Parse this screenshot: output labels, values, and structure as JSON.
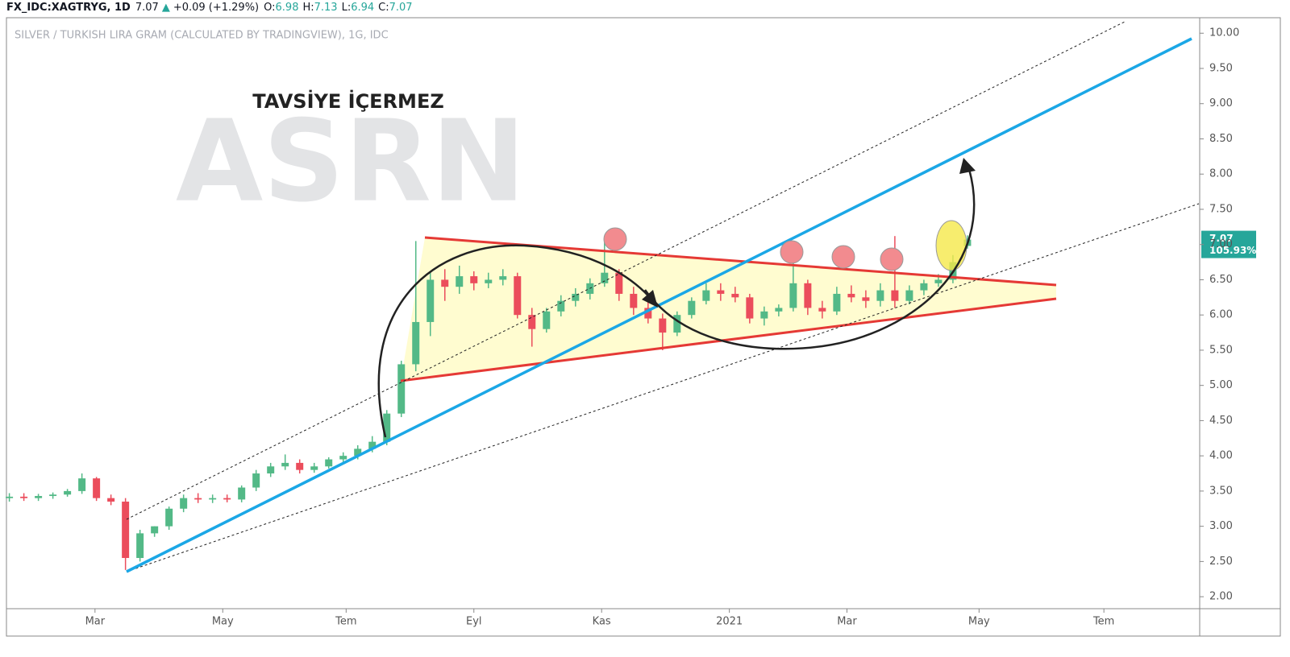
{
  "header": {
    "symbol": "FX_IDC:XAGTRYG, 1D",
    "last": "7.07",
    "arrow": "▲",
    "change": "+0.09 (+1.29%)",
    "o_label": "O:",
    "o": "6.98",
    "h_label": "H:",
    "h": "7.13",
    "l_label": "L:",
    "l": "6.94",
    "c_label": "C:",
    "c": "7.07"
  },
  "chart_data": {
    "type": "candlestick",
    "title": "SILVER / TURKISH LIRA GRAM (CALCULATED BY TRADINGVIEW), 1G, IDC",
    "annotation": "TAVSİYE İÇERMEZ",
    "watermark": "ASRN",
    "price_tag": {
      "value": 7.07,
      "label": "7.07",
      "percent": "105.93%"
    },
    "up_color": "#53b987",
    "down_color": "#eb4d5c",
    "grid": false,
    "xlim": [
      -0.2,
      82
    ],
    "xticks": [
      {
        "value": 5.9,
        "label": "Mar"
      },
      {
        "value": 14.7,
        "label": "May"
      },
      {
        "value": 23.2,
        "label": "Tem"
      },
      {
        "value": 32,
        "label": "Eyl"
      },
      {
        "value": 40.8,
        "label": "Kas"
      },
      {
        "value": 49.6,
        "label": "2021"
      },
      {
        "value": 57.7,
        "label": "Mar"
      },
      {
        "value": 66.8,
        "label": "May"
      },
      {
        "value": 75.4,
        "label": "Tem"
      }
    ],
    "ylim": [
      1.83,
      10.22
    ],
    "yticks": [
      {
        "value": 2,
        "label": "2.00"
      },
      {
        "value": 2.5,
        "label": "2.50"
      },
      {
        "value": 3,
        "label": "3.00"
      },
      {
        "value": 3.5,
        "label": "3.50"
      },
      {
        "value": 4,
        "label": "4.00"
      },
      {
        "value": 4.5,
        "label": "4.50"
      },
      {
        "value": 5,
        "label": "5.00"
      },
      {
        "value": 5.5,
        "label": "5.50"
      },
      {
        "value": 6,
        "label": "6.00"
      },
      {
        "value": 6.5,
        "label": "6.50"
      },
      {
        "value": 7,
        "label": "7.00"
      },
      {
        "value": 7.5,
        "label": "7.50"
      },
      {
        "value": 8,
        "label": "8.00"
      },
      {
        "value": 8.5,
        "label": "8.50"
      },
      {
        "value": 9,
        "label": "9.00"
      },
      {
        "value": 9.5,
        "label": "9.50"
      },
      {
        "value": 10,
        "label": "10.00"
      }
    ],
    "open": [
      3.4,
      3.42,
      3.4,
      3.43,
      3.45,
      3.5,
      3.68,
      3.4,
      3.35,
      2.55,
      2.9,
      3.0,
      3.25,
      3.4,
      3.38,
      3.4,
      3.38,
      3.55,
      3.75,
      3.85,
      3.9,
      3.8,
      3.85,
      3.95,
      4.0,
      4.1,
      4.2,
      4.6,
      5.3,
      5.9,
      6.5,
      6.4,
      6.55,
      6.45,
      6.5,
      6.55,
      6.0,
      5.8,
      6.05,
      6.2,
      6.3,
      6.45,
      6.6,
      6.3,
      6.1,
      5.95,
      5.75,
      6.0,
      6.2,
      6.35,
      6.3,
      6.25,
      5.95,
      6.05,
      6.1,
      6.45,
      6.1,
      6.05,
      6.3,
      6.25,
      6.2,
      6.35,
      6.2,
      6.35,
      6.45,
      6.5,
      6.98
    ],
    "high": [
      3.47,
      3.47,
      3.46,
      3.48,
      3.53,
      3.75,
      3.7,
      3.45,
      3.4,
      2.95,
      3.0,
      3.28,
      3.45,
      3.47,
      3.45,
      3.45,
      3.58,
      3.8,
      3.9,
      4.02,
      3.95,
      3.9,
      3.98,
      4.05,
      4.15,
      4.28,
      4.65,
      5.35,
      7.05,
      6.6,
      6.65,
      6.7,
      6.62,
      6.6,
      6.65,
      6.6,
      6.1,
      6.1,
      6.28,
      6.38,
      6.52,
      7.05,
      6.65,
      6.4,
      6.18,
      6.02,
      6.05,
      6.25,
      6.45,
      6.45,
      6.4,
      6.3,
      6.12,
      6.15,
      6.95,
      6.5,
      6.2,
      6.4,
      6.42,
      6.35,
      6.45,
      7.12,
      6.42,
      6.5,
      6.58,
      6.85,
      7.13
    ],
    "low": [
      3.35,
      3.36,
      3.36,
      3.39,
      3.42,
      3.46,
      3.36,
      3.3,
      2.38,
      2.5,
      2.85,
      2.95,
      3.2,
      3.33,
      3.33,
      3.34,
      3.34,
      3.5,
      3.7,
      3.8,
      3.75,
      3.76,
      3.82,
      3.9,
      3.95,
      4.05,
      4.15,
      4.55,
      5.2,
      5.7,
      6.2,
      6.3,
      6.35,
      6.38,
      6.42,
      5.95,
      5.55,
      5.75,
      5.98,
      6.12,
      6.22,
      6.4,
      6.2,
      6.0,
      5.88,
      5.5,
      5.7,
      5.95,
      6.15,
      6.2,
      6.18,
      5.88,
      5.85,
      5.98,
      6.05,
      6.0,
      5.95,
      6.0,
      6.18,
      6.1,
      6.12,
      6.1,
      6.15,
      6.28,
      6.4,
      6.45,
      6.94
    ],
    "close": [
      3.42,
      3.4,
      3.43,
      3.45,
      3.5,
      3.68,
      3.4,
      3.35,
      2.55,
      2.9,
      3.0,
      3.25,
      3.4,
      3.38,
      3.4,
      3.38,
      3.55,
      3.75,
      3.85,
      3.9,
      3.8,
      3.85,
      3.95,
      4.0,
      4.1,
      4.2,
      4.6,
      5.3,
      5.9,
      6.5,
      6.4,
      6.55,
      6.45,
      6.5,
      6.55,
      6.0,
      5.8,
      6.05,
      6.2,
      6.3,
      6.45,
      6.6,
      6.3,
      6.1,
      5.95,
      5.75,
      6.0,
      6.2,
      6.35,
      6.3,
      6.25,
      5.95,
      6.05,
      6.1,
      6.45,
      6.1,
      6.05,
      6.3,
      6.25,
      6.2,
      6.35,
      6.2,
      6.35,
      6.45,
      6.5,
      6.75,
      7.07
    ]
  }
}
